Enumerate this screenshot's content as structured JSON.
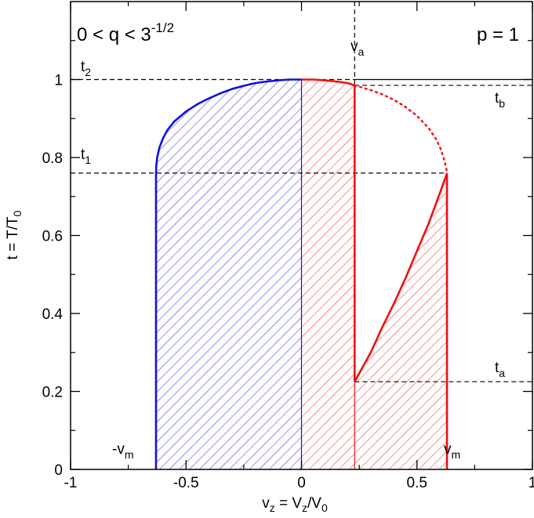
{
  "chart_data": {
    "type": "area",
    "xlabel": {
      "main": "v",
      "main_sub": "z",
      "mid": " = V",
      "mid_sub": "z",
      "tail": "/V",
      "tail_sub": "0"
    },
    "ylabel": {
      "main": "t = T/T",
      "sub": "0"
    },
    "xlim": [
      -1,
      1
    ],
    "ylim": [
      0,
      1.2
    ],
    "x_ticks": [
      -1,
      -0.5,
      0,
      0.5,
      1
    ],
    "x_tick_labels": [
      "-1",
      "-0.5",
      "0",
      "0.5",
      "1"
    ],
    "y_ticks": [
      0,
      0.2,
      0.4,
      0.6,
      0.8,
      1
    ],
    "y_tick_labels": [
      "0",
      "0.2",
      "0.4",
      "0.6",
      "0.8",
      "1"
    ],
    "condition_label": {
      "main": "0 < q < 3",
      "sup": "-1/2"
    },
    "p_label": "p = 1",
    "colors": {
      "blue": "#1010e0",
      "red": "#ee1010",
      "black": "#000000"
    },
    "params": {
      "vm": 0.63,
      "va": 0.23,
      "t1": 0.76,
      "t2": 1.0,
      "ta": 0.225,
      "tb": 0.985
    },
    "series": [
      {
        "color": "blue",
        "style": "solid",
        "x": [
          -0.63,
          -0.629,
          -0.625,
          -0.615,
          -0.6,
          -0.58,
          -0.55,
          -0.5,
          -0.45,
          -0.4,
          -0.35,
          -0.3,
          -0.25,
          -0.2,
          -0.15,
          -0.1,
          -0.05,
          0.0
        ],
        "y": [
          0.76,
          0.776,
          0.8,
          0.826,
          0.849,
          0.871,
          0.893,
          0.918,
          0.937,
          0.952,
          0.965,
          0.976,
          0.984,
          0.991,
          0.995,
          0.998,
          1.0,
          1.0
        ]
      },
      {
        "color": "blue",
        "style": "solid",
        "x": [
          -0.63,
          -0.63
        ],
        "y": [
          0.0,
          0.76
        ]
      },
      {
        "color": "blue",
        "style": "thin",
        "x": [
          0.0,
          0.0
        ],
        "y": [
          0.0,
          1.0
        ]
      },
      {
        "color": "red",
        "style": "solid",
        "x": [
          0.0,
          0.05,
          0.1,
          0.15,
          0.2,
          0.23
        ],
        "y": [
          1.0,
          1.0,
          0.998,
          0.995,
          0.991,
          0.985
        ]
      },
      {
        "color": "red",
        "style": "dotted",
        "x": [
          0.23,
          0.3,
          0.35,
          0.4,
          0.45,
          0.5,
          0.55,
          0.58,
          0.6,
          0.615,
          0.625,
          0.629,
          0.63
        ],
        "y": [
          0.985,
          0.973,
          0.962,
          0.948,
          0.93,
          0.907,
          0.876,
          0.85,
          0.826,
          0.8,
          0.778,
          0.766,
          0.76
        ]
      },
      {
        "color": "red",
        "style": "solid",
        "x": [
          0.23,
          0.3,
          0.35,
          0.4,
          0.45,
          0.5,
          0.55,
          0.6,
          0.63
        ],
        "y": [
          0.225,
          0.3,
          0.365,
          0.425,
          0.49,
          0.56,
          0.63,
          0.71,
          0.76
        ]
      },
      {
        "color": "red",
        "style": "solid",
        "x": [
          0.63,
          0.63
        ],
        "y": [
          0.0,
          0.76
        ]
      },
      {
        "color": "red",
        "style": "solid",
        "x": [
          0.23,
          0.23
        ],
        "y": [
          0.225,
          0.985
        ]
      },
      {
        "color": "red",
        "style": "thin",
        "x": [
          0.23,
          0.23
        ],
        "y": [
          0.0,
          0.225
        ]
      }
    ],
    "dashed_lines": [
      {
        "x": [
          -1,
          0.63
        ],
        "y": [
          0.76,
          0.76
        ]
      },
      {
        "x": [
          -1,
          0.23
        ],
        "y": [
          1.0,
          1.0
        ]
      },
      {
        "x": [
          0.23,
          0.23
        ],
        "y": [
          1.2,
          0.985
        ]
      },
      {
        "x": [
          0.23,
          1.0
        ],
        "y": [
          0.985,
          0.985
        ]
      },
      {
        "x": [
          0.23,
          1.0
        ],
        "y": [
          0.225,
          0.225
        ]
      }
    ],
    "solid_lines": [
      {
        "x": [
          0.23,
          1.0
        ],
        "y": [
          1.0,
          1.0
        ]
      }
    ],
    "annotations": [
      {
        "id": "t2",
        "main": "t",
        "sub": "2"
      },
      {
        "id": "t1",
        "main": "t",
        "sub": "1"
      },
      {
        "id": "va",
        "main": "v",
        "sub": "a"
      },
      {
        "id": "tb",
        "main": "t",
        "sub": "b"
      },
      {
        "id": "ta",
        "main": "t",
        "sub": "a"
      },
      {
        "id": "neg-vm",
        "main": "-v",
        "sub": "m"
      },
      {
        "id": "vm",
        "main": "v",
        "sub": "m"
      }
    ]
  }
}
